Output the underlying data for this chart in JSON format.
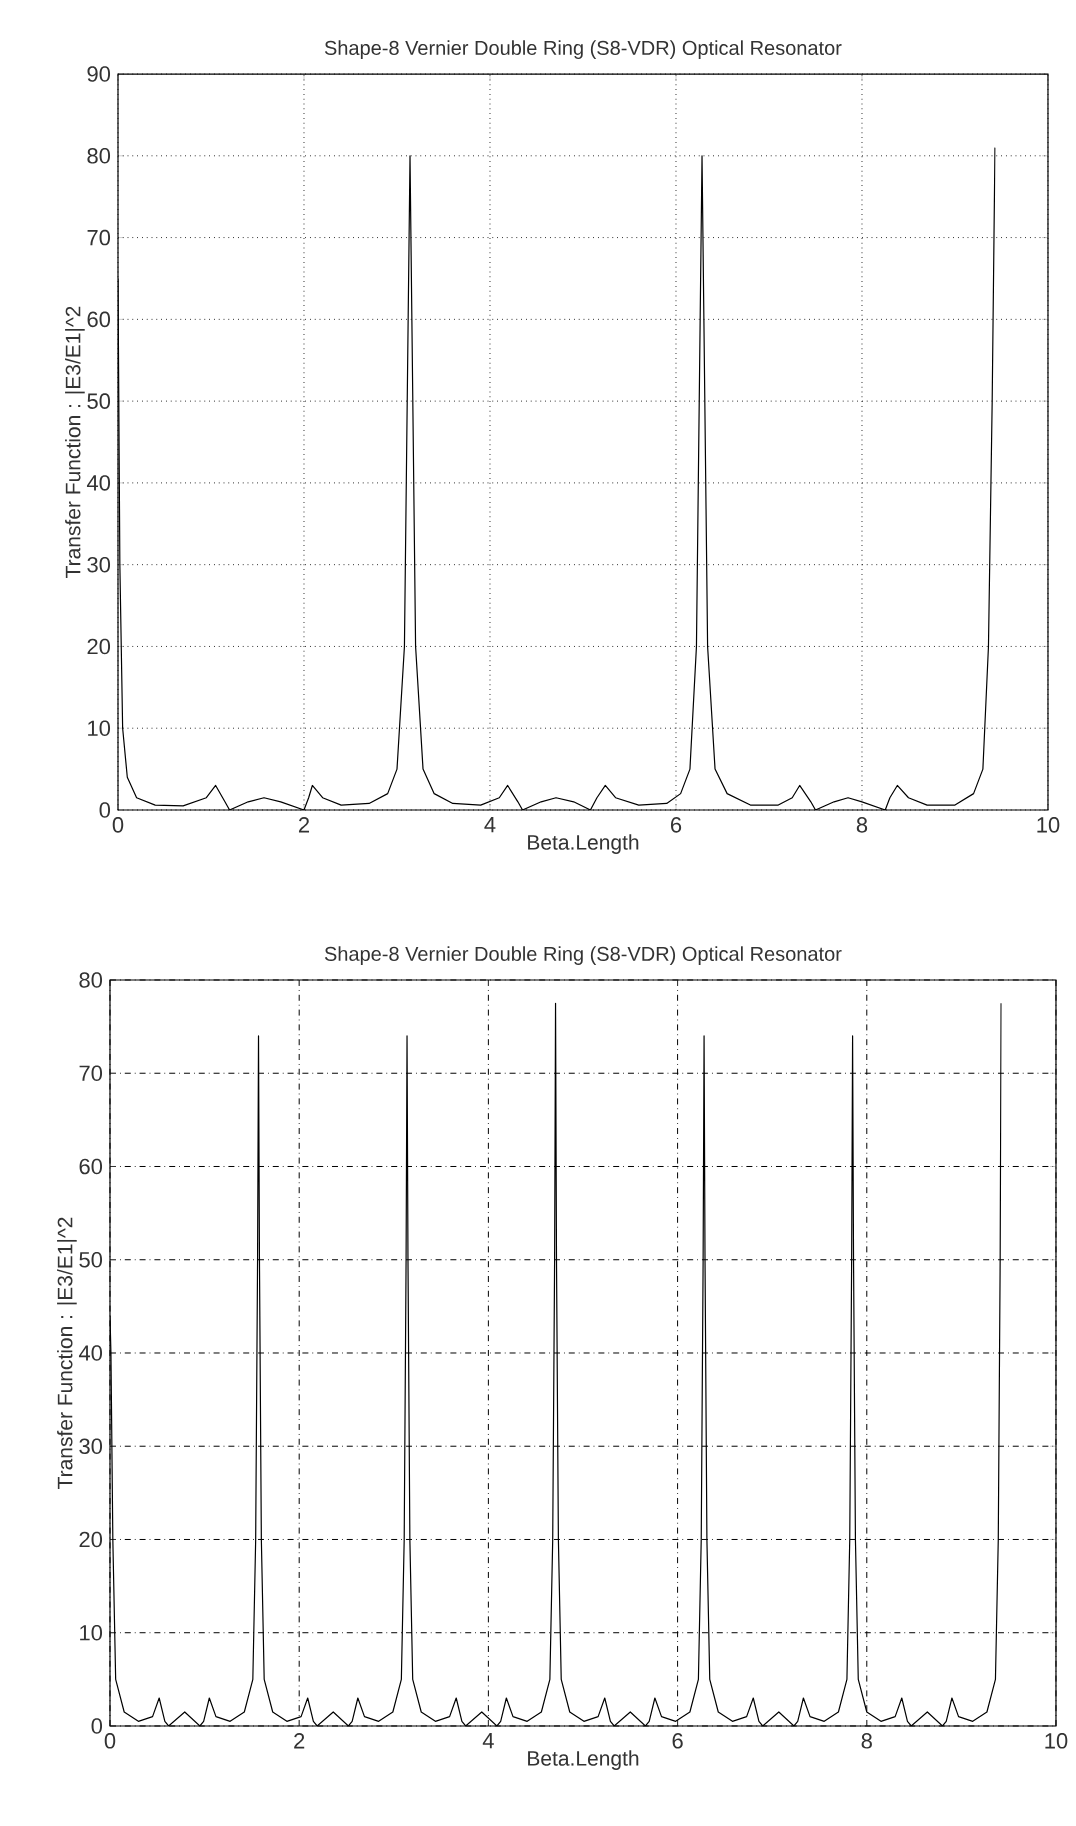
{
  "chart_data": [
    {
      "type": "line",
      "title": "Shape-8 Vernier Double Ring (S8-VDR) Optical Resonator",
      "xlabel": "Beta.Length",
      "ylabel": "Transfer Function : |E3/E1|^2",
      "color": "#000000",
      "grid": true,
      "xlim": [
        0,
        10
      ],
      "ylim": [
        0,
        90
      ],
      "xticks": [
        0,
        2,
        4,
        6,
        8,
        10
      ],
      "yticks": [
        0,
        10,
        20,
        30,
        40,
        50,
        60,
        70,
        80,
        90
      ],
      "x": [
        0,
        0.02,
        0.05,
        0.1,
        0.2,
        0.4,
        0.7,
        0.95,
        1.05,
        1.15,
        1.2,
        1.4,
        1.57,
        1.75,
        2.0,
        2.05,
        2.09,
        2.2,
        2.4,
        2.7,
        2.9,
        3.0,
        3.08,
        3.12,
        3.14,
        3.16,
        3.2,
        3.28,
        3.4,
        3.6,
        3.9,
        4.1,
        4.19,
        4.3,
        4.35,
        4.55,
        4.71,
        4.9,
        5.08,
        5.15,
        5.24,
        5.35,
        5.6,
        5.9,
        6.05,
        6.15,
        6.22,
        6.26,
        6.28,
        6.3,
        6.34,
        6.42,
        6.55,
        6.8,
        7.1,
        7.25,
        7.33,
        7.45,
        7.5,
        7.7,
        7.85,
        8.0,
        8.25,
        8.3,
        8.38,
        8.5,
        8.7,
        9.0,
        9.2,
        9.3,
        9.36,
        9.4,
        9.43
      ],
      "values": [
        65,
        30,
        10,
        4,
        1.5,
        0.6,
        0.5,
        1.5,
        3,
        1,
        0,
        1,
        1.5,
        1,
        0,
        1.5,
        3,
        1.5,
        0.6,
        0.8,
        2,
        5,
        20,
        60,
        80,
        60,
        20,
        5,
        2,
        0.8,
        0.6,
        1.5,
        3,
        1,
        0,
        1,
        1.5,
        1,
        0,
        1.5,
        3,
        1.5,
        0.6,
        0.8,
        2,
        5,
        20,
        60,
        80,
        60,
        20,
        5,
        2,
        0.6,
        0.6,
        1.5,
        3,
        1,
        0,
        1,
        1.5,
        1,
        0,
        1.5,
        3,
        1.5,
        0.6,
        0.6,
        2,
        5,
        20,
        50,
        81
      ]
    },
    {
      "type": "line",
      "title": "Shape-8 Vernier Double Ring (S8-VDR) Optical Resonator",
      "xlabel": "Beta.Length",
      "ylabel": "Transfer Function : |E3/E1|^2",
      "color": "#000000",
      "grid": true,
      "xlim": [
        0,
        10
      ],
      "ylim": [
        0,
        80
      ],
      "xticks": [
        0,
        2,
        4,
        6,
        8,
        10
      ],
      "yticks": [
        0,
        10,
        20,
        30,
        40,
        50,
        60,
        70,
        80
      ],
      "x": [
        0,
        0.01,
        0.03,
        0.06,
        0.15,
        0.3,
        0.45,
        0.52,
        0.58,
        0.62,
        0.79,
        0.95,
        0.99,
        1.05,
        1.12,
        1.27,
        1.42,
        1.51,
        1.54,
        1.56,
        1.57,
        1.58,
        1.6,
        1.63,
        1.72,
        1.87,
        2.02,
        2.09,
        2.15,
        2.19,
        2.36,
        2.52,
        2.56,
        2.62,
        2.69,
        2.84,
        2.99,
        3.08,
        3.11,
        3.13,
        3.14,
        3.15,
        3.17,
        3.2,
        3.29,
        3.44,
        3.59,
        3.66,
        3.72,
        3.76,
        3.93,
        4.09,
        4.13,
        4.19,
        4.26,
        4.41,
        4.56,
        4.65,
        4.68,
        4.7,
        4.71,
        4.72,
        4.74,
        4.77,
        4.86,
        5.01,
        5.16,
        5.23,
        5.29,
        5.33,
        5.5,
        5.66,
        5.7,
        5.76,
        5.83,
        5.98,
        6.13,
        6.22,
        6.25,
        6.27,
        6.28,
        6.29,
        6.31,
        6.34,
        6.43,
        6.58,
        6.73,
        6.8,
        6.86,
        6.9,
        7.07,
        7.23,
        7.27,
        7.33,
        7.4,
        7.55,
        7.7,
        7.79,
        7.82,
        7.84,
        7.85,
        7.86,
        7.88,
        7.91,
        8.0,
        8.15,
        8.3,
        8.37,
        8.43,
        8.47,
        8.64,
        8.8,
        8.84,
        8.9,
        8.97,
        9.12,
        9.27,
        9.36,
        9.39,
        9.41,
        9.42
      ],
      "values": [
        44,
        40,
        20,
        5,
        1.5,
        0.5,
        1,
        3,
        0.5,
        0,
        1.5,
        0,
        0.5,
        3,
        1,
        0.5,
        1.5,
        5,
        20,
        50,
        74,
        50,
        20,
        5,
        1.5,
        0.5,
        1,
        3,
        0.5,
        0,
        1.5,
        0,
        0.5,
        3,
        1,
        0.5,
        1.5,
        5,
        20,
        50,
        74,
        50,
        20,
        5,
        1.5,
        0.5,
        1,
        3,
        0.5,
        0,
        1.5,
        0,
        0.5,
        3,
        1,
        0.5,
        1.5,
        5,
        20,
        50,
        77.5,
        50,
        20,
        5,
        1.5,
        0.5,
        1,
        3,
        0.5,
        0,
        1.5,
        0,
        0.5,
        3,
        1,
        0.5,
        1.5,
        5,
        20,
        50,
        74,
        50,
        20,
        5,
        1.5,
        0.5,
        1,
        3,
        0.5,
        0,
        1.5,
        0,
        0.5,
        3,
        1,
        0.5,
        1.5,
        5,
        20,
        50,
        74,
        50,
        20,
        5,
        1.5,
        0.5,
        1,
        3,
        0.5,
        0,
        1.5,
        0,
        0.5,
        3,
        1,
        0.5,
        1.5,
        5,
        20,
        50,
        77.5
      ]
    }
  ]
}
